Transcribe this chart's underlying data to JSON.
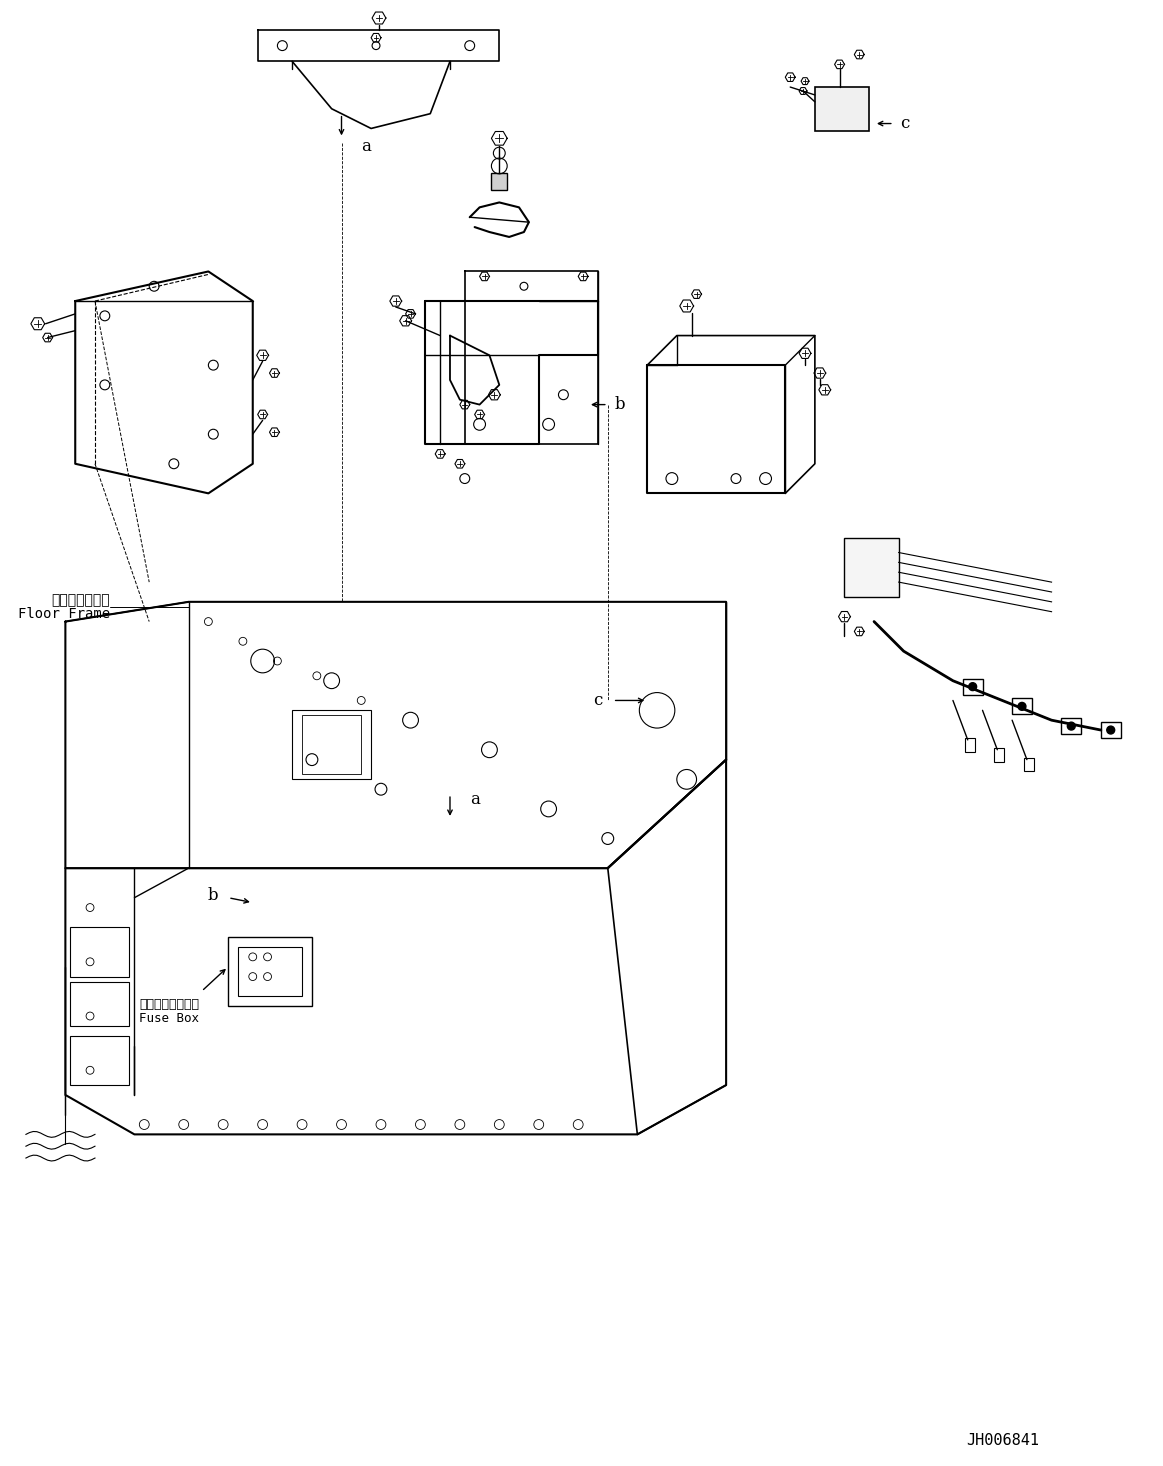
{
  "figure_width": 11.63,
  "figure_height": 14.66,
  "dpi": 100,
  "background_color": "#ffffff",
  "line_color": "#000000",
  "title_code": "JH006841",
  "labels": {
    "floor_frame_jp": "フロアフレーム",
    "floor_frame_en": "Floor Frame",
    "fuse_box_jp": "フューズボックス",
    "fuse_box_en": "Fuse Box",
    "label_a": "a",
    "label_b": "b",
    "label_c": "c"
  }
}
